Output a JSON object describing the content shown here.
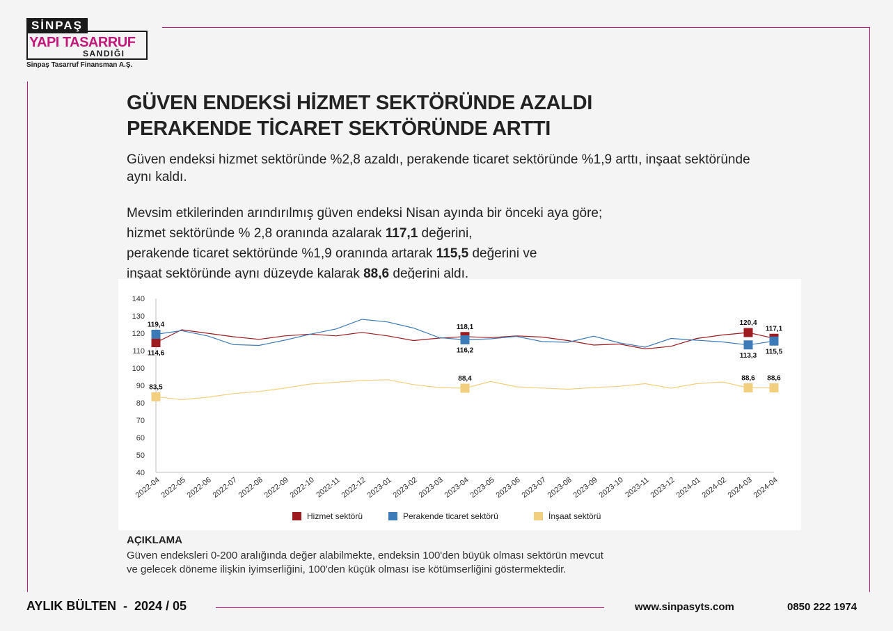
{
  "logo": {
    "top": "SİNPAŞ",
    "brand": "YAPI TASARRUF",
    "sub": "SANDIĞI",
    "company": "Sinpaş Tasarruf Finansman A.Ş."
  },
  "title": {
    "line1": "GÜVEN ENDEKSİ HİZMET SEKTÖRÜNDE AZALDI",
    "line2": "PERAKENDE TİCARET SEKTÖRÜNDE ARTTI"
  },
  "intro": "Güven endeksi hizmet sektöründe %2,8 azaldı, perakende ticaret sektöründe %1,9 arttı, inşaat sektöründe aynı kaldı.",
  "para": {
    "l1": "Mevsim etkilerinden arındırılmış güven endeksi Nisan ayında bir önceki aya göre;",
    "l2a": "hizmet sektöründe % 2,8 oranında azalarak ",
    "l2b": "117,1",
    "l2c": " değerini,",
    "l3a": "perakende ticaret sektöründe %1,9 oranında artarak ",
    "l3b": "115,5",
    "l3c": " değerini ve",
    "l4a": "inşaat sektöründe aynı düzeyde kalarak ",
    "l4b": "88,6",
    "l4c": " değerini aldı."
  },
  "chart_data": {
    "type": "line",
    "title": "",
    "xlabel": "",
    "ylabel": "",
    "ylim": [
      40,
      140
    ],
    "yticks": [
      40,
      50,
      60,
      70,
      80,
      90,
      100,
      110,
      120,
      130,
      140
    ],
    "grid": false,
    "legend_position": "bottom",
    "categories": [
      "2022-04",
      "2022-05",
      "2022-06",
      "2022-07",
      "2022-08",
      "2022-09",
      "2022-10",
      "2022-11",
      "2022-12",
      "2023-01",
      "2023-02",
      "2023-03",
      "2023-04",
      "2023-05",
      "2023-06",
      "2023-07",
      "2023-08",
      "2023-09",
      "2023-10",
      "2023-11",
      "2023-12",
      "2024-01",
      "2024-02",
      "2024-03",
      "2024-04"
    ],
    "series": [
      {
        "name": "Hizmet sektörü",
        "color": "#9e1b1f",
        "values": [
          114.6,
          122.0,
          120.0,
          118.0,
          116.5,
          118.5,
          119.5,
          118.5,
          120.5,
          118.5,
          115.8,
          117.2,
          118.1,
          117.5,
          118.5,
          117.8,
          115.8,
          113.2,
          113.8,
          111.0,
          112.5,
          117.0,
          119.0,
          120.4,
          117.1
        ]
      },
      {
        "name": "Perakende ticaret sektörü",
        "color": "#3d7ab8",
        "values": [
          119.4,
          121.5,
          118.5,
          113.5,
          113.0,
          116.0,
          119.5,
          122.5,
          128.0,
          126.5,
          123.0,
          117.5,
          116.2,
          116.8,
          118.2,
          115.2,
          114.8,
          118.3,
          114.5,
          112.0,
          117.0,
          116.0,
          115.0,
          113.3,
          115.5
        ]
      },
      {
        "name": "İnşaat sektörü",
        "color": "#f2cf7e",
        "values": [
          83.5,
          81.8,
          83.2,
          85.3,
          86.5,
          88.5,
          90.8,
          91.8,
          92.8,
          93.3,
          90.5,
          88.8,
          88.4,
          92.3,
          89.2,
          88.5,
          87.8,
          88.8,
          89.5,
          91.0,
          88.4,
          91.0,
          92.0,
          88.6,
          88.6
        ]
      }
    ],
    "annotations": [
      {
        "series": 0,
        "index": 0,
        "label": "114,6",
        "pos": "below"
      },
      {
        "series": 1,
        "index": 0,
        "label": "119,4",
        "pos": "above"
      },
      {
        "series": 0,
        "index": 12,
        "label": "118,1",
        "pos": "above"
      },
      {
        "series": 1,
        "index": 12,
        "label": "116,2",
        "pos": "below"
      },
      {
        "series": 0,
        "index": 23,
        "label": "120,4",
        "pos": "above"
      },
      {
        "series": 1,
        "index": 23,
        "label": "113,3",
        "pos": "below"
      },
      {
        "series": 0,
        "index": 24,
        "label": "117,1",
        "pos": "above"
      },
      {
        "series": 1,
        "index": 24,
        "label": "115,5",
        "pos": "below"
      },
      {
        "series": 2,
        "index": 0,
        "label": "83,5",
        "pos": "above"
      },
      {
        "series": 2,
        "index": 12,
        "label": "88,4",
        "pos": "above"
      },
      {
        "series": 2,
        "index": 23,
        "label": "88,6",
        "pos": "above"
      },
      {
        "series": 2,
        "index": 24,
        "label": "88,6",
        "pos": "above"
      }
    ]
  },
  "note": {
    "title": "AÇIKLAMA",
    "line1": "Güven endeksleri 0-200 aralığında değer alabilmekte, endeksin 100'den büyük olması sektörün mevcut",
    "line2": "ve gelecek döneme ilişkin iyimserliğini, 100'den küçük olması ise kötümserliğini göstermektedir."
  },
  "footer": {
    "bulletin": "AYLIK BÜLTEN  -  2024 / 05",
    "web": "www.sinpasyts.com",
    "phone": "0850 222 1974"
  }
}
